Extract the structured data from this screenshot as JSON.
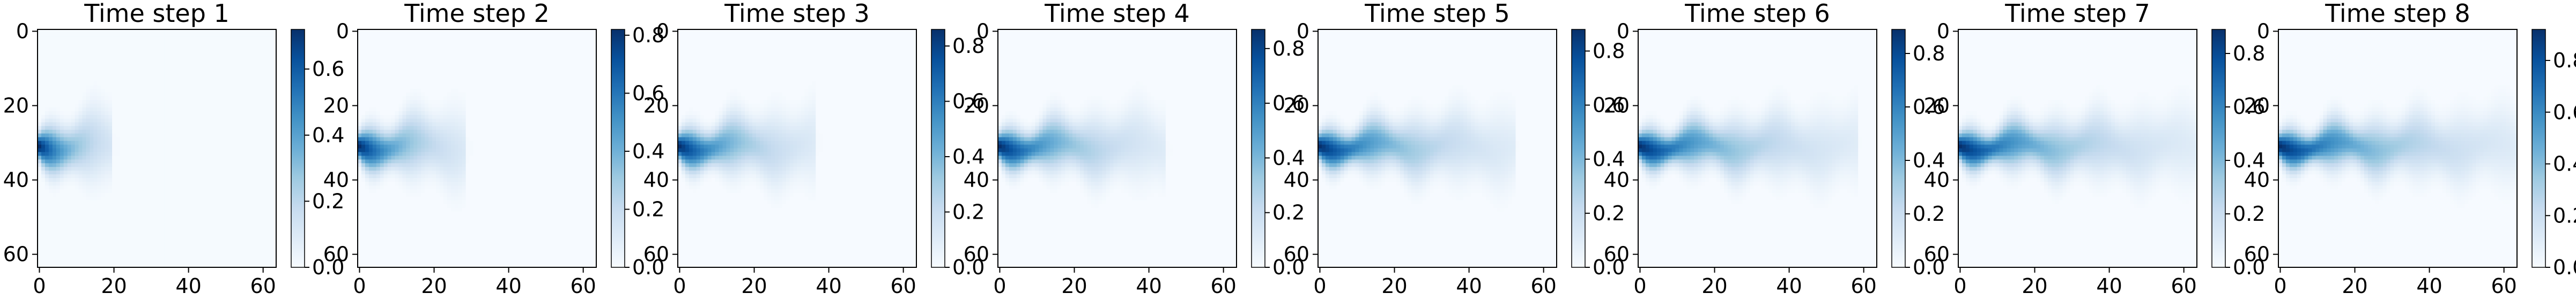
{
  "chart_data": [
    {
      "type": "heatmap",
      "title": "Time step 1",
      "colormap": "Blues",
      "x_ticks": [
        "0",
        "20",
        "40",
        "60"
      ],
      "y_ticks": [
        "0",
        "20",
        "40",
        "60"
      ],
      "xlim": [
        0,
        63
      ],
      "ylim": [
        63,
        0
      ],
      "colorbar_ticks": [
        "0.0",
        "0.2",
        "0.4",
        "0.6"
      ],
      "colorbar_range": [
        0.0,
        0.72
      ],
      "plume": {
        "source_y": 31,
        "length": 19,
        "peak": 0.72
      }
    },
    {
      "type": "heatmap",
      "title": "Time step 2",
      "colormap": "Blues",
      "x_ticks": [
        "0",
        "20",
        "40",
        "60"
      ],
      "y_ticks": [
        "0",
        "20",
        "40",
        "60"
      ],
      "xlim": [
        0,
        63
      ],
      "ylim": [
        63,
        0
      ],
      "colorbar_ticks": [
        "0.0",
        "0.2",
        "0.4",
        "0.6",
        "0.8"
      ],
      "colorbar_range": [
        0.0,
        0.82
      ],
      "plume": {
        "source_y": 31,
        "length": 28,
        "peak": 0.82
      }
    },
    {
      "type": "heatmap",
      "title": "Time step 3",
      "colormap": "Blues",
      "x_ticks": [
        "0",
        "20",
        "40",
        "60"
      ],
      "y_ticks": [
        "0",
        "20",
        "40",
        "60"
      ],
      "xlim": [
        0,
        63
      ],
      "ylim": [
        63,
        0
      ],
      "colorbar_ticks": [
        "0.0",
        "0.2",
        "0.4",
        "0.6",
        "0.8"
      ],
      "colorbar_range": [
        0.0,
        0.86
      ],
      "plume": {
        "source_y": 31,
        "length": 36,
        "peak": 0.86
      }
    },
    {
      "type": "heatmap",
      "title": "Time step 4",
      "colormap": "Blues",
      "x_ticks": [
        "0",
        "20",
        "40",
        "60"
      ],
      "y_ticks": [
        "0",
        "20",
        "40",
        "60"
      ],
      "xlim": [
        0,
        63
      ],
      "ylim": [
        63,
        0
      ],
      "colorbar_ticks": [
        "0.0",
        "0.2",
        "0.4",
        "0.6",
        "0.8"
      ],
      "colorbar_range": [
        0.0,
        0.87
      ],
      "plume": {
        "source_y": 31,
        "length": 44,
        "peak": 0.87
      }
    },
    {
      "type": "heatmap",
      "title": "Time step 5",
      "colormap": "Blues",
      "x_ticks": [
        "0",
        "20",
        "40",
        "60"
      ],
      "y_ticks": [
        "0",
        "20",
        "40",
        "60"
      ],
      "xlim": [
        0,
        63
      ],
      "ylim": [
        63,
        0
      ],
      "colorbar_ticks": [
        "0.0",
        "0.2",
        "0.4",
        "0.6",
        "0.8"
      ],
      "colorbar_range": [
        0.0,
        0.88
      ],
      "plume": {
        "source_y": 31,
        "length": 52,
        "peak": 0.88
      }
    },
    {
      "type": "heatmap",
      "title": "Time step 6",
      "colormap": "Blues",
      "x_ticks": [
        "0",
        "20",
        "40",
        "60"
      ],
      "y_ticks": [
        "0",
        "20",
        "40",
        "60"
      ],
      "xlim": [
        0,
        63
      ],
      "ylim": [
        63,
        0
      ],
      "colorbar_ticks": [
        "0.0",
        "0.2",
        "0.4",
        "0.6",
        "0.8"
      ],
      "colorbar_range": [
        0.0,
        0.89
      ],
      "plume": {
        "source_y": 31,
        "length": 58,
        "peak": 0.89
      }
    },
    {
      "type": "heatmap",
      "title": "Time step 7",
      "colormap": "Blues",
      "x_ticks": [
        "0",
        "20",
        "40",
        "60"
      ],
      "y_ticks": [
        "0",
        "20",
        "40",
        "60"
      ],
      "xlim": [
        0,
        63
      ],
      "ylim": [
        63,
        0
      ],
      "colorbar_ticks": [
        "0.0",
        "0.2",
        "0.4",
        "0.6",
        "0.8"
      ],
      "colorbar_range": [
        0.0,
        0.89
      ],
      "plume": {
        "source_y": 31,
        "length": 63,
        "peak": 0.89
      }
    },
    {
      "type": "heatmap",
      "title": "Time step 8",
      "colormap": "Blues",
      "x_ticks": [
        "0",
        "20",
        "40",
        "60"
      ],
      "y_ticks": [
        "0",
        "20",
        "40",
        "60"
      ],
      "xlim": [
        0,
        63
      ],
      "ylim": [
        63,
        0
      ],
      "colorbar_ticks": [
        "0.0",
        "0.2",
        "0.4",
        "0.6",
        "0.8"
      ],
      "colorbar_range": [
        0.0,
        0.92
      ],
      "plume": {
        "source_y": 31,
        "length": 66,
        "peak": 0.92
      }
    }
  ],
  "colors": {
    "cmap_low": "#f7fbff",
    "cmap_high": "#08306b",
    "axis": "#000000"
  }
}
